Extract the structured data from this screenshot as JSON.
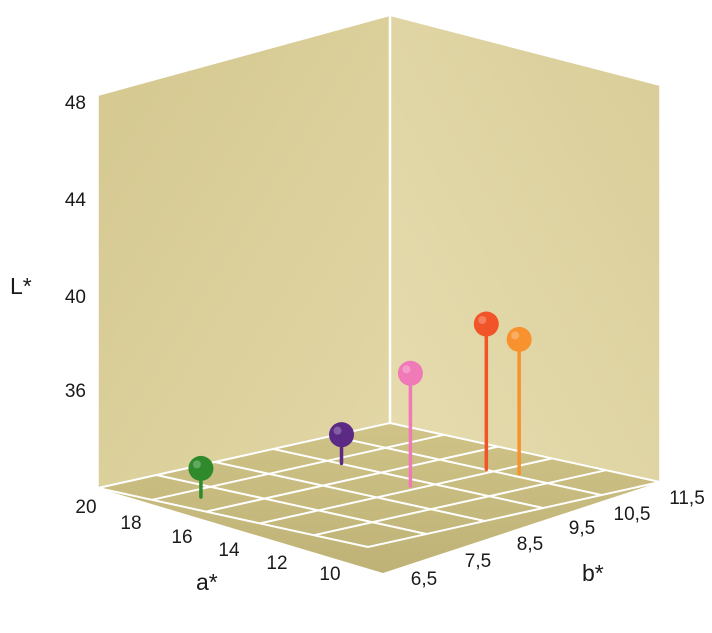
{
  "chart_data": {
    "type": "scatter",
    "projection": "3d",
    "title": "",
    "axes": {
      "L": {
        "label": "L*",
        "ticks": [
          "36",
          "40",
          "44",
          "48"
        ],
        "tick_values": [
          36,
          40,
          44,
          48
        ]
      },
      "a": {
        "label": "a*",
        "ticks": [
          "10",
          "12",
          "14",
          "16",
          "18",
          "20"
        ],
        "tick_values": [
          10,
          12,
          14,
          16,
          18,
          20
        ]
      },
      "b": {
        "label": "b*",
        "ticks": [
          "6,5",
          "7,5",
          "8,5",
          "9,5",
          "10,5",
          "11,5"
        ],
        "tick_values": [
          6.5,
          7.5,
          8.5,
          9.5,
          10.5,
          11.5
        ]
      }
    },
    "series": [
      {
        "color": "#2e8a2a",
        "a": 17.4,
        "b": 7.0,
        "L": 32.4
      },
      {
        "color": "#5a2a84",
        "a": 12.4,
        "b": 6.9,
        "L": 32.4
      },
      {
        "color": "#f07ab8",
        "a": 13.0,
        "b": 8.5,
        "L": 36.3
      },
      {
        "color": "#f2542a",
        "a": 10.4,
        "b": 8.5,
        "L": 37.8
      },
      {
        "color": "#f7922e",
        "a": 10.2,
        "b": 9.0,
        "L": 37.3
      }
    ],
    "colors": {
      "wall": "#d8cb94",
      "floor": "#c8bc82",
      "grid": "#ffffff"
    }
  }
}
